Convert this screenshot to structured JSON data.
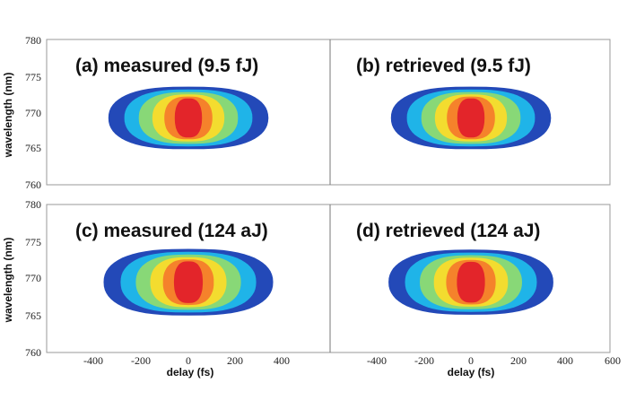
{
  "chart_data": {
    "type": "contour",
    "contour_colors": [
      "#2349b8",
      "#1fb4e8",
      "#88d877",
      "#f3dc2f",
      "#f5822b",
      "#e3252a"
    ],
    "delay_ticks": [
      -400,
      -200,
      0,
      200,
      400,
      600
    ],
    "wavelength_ticks": [
      760,
      765,
      770,
      775,
      780
    ],
    "xlabel": "delay (fs)",
    "ylabel": "wavelength (nm)",
    "panels": [
      {
        "title": "(a) measured (9.5 fJ)",
        "center_delay": 0,
        "center_wavelength": 769.2,
        "delay_halfwidth": 340,
        "wavelength_halfwidth": 4.3
      },
      {
        "title": "(b) retrieved (9.5 fJ)",
        "center_delay": 0,
        "center_wavelength": 769.2,
        "delay_halfwidth": 340,
        "wavelength_halfwidth": 4.3
      },
      {
        "title": "(c) measured (124 aJ)",
        "center_delay": 0,
        "center_wavelength": 769.5,
        "delay_halfwidth": 360,
        "wavelength_halfwidth": 4.5
      },
      {
        "title": "(d) retrieved (124 aJ)",
        "center_delay": 0,
        "center_wavelength": 769.5,
        "delay_halfwidth": 350,
        "wavelength_halfwidth": 4.4
      }
    ]
  }
}
